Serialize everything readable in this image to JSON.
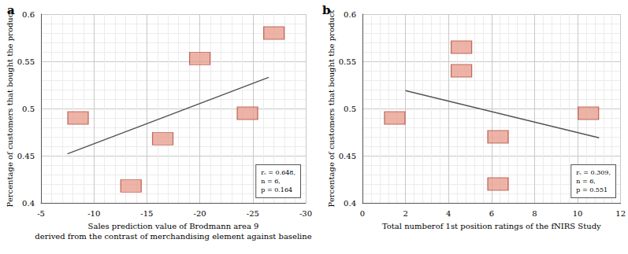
{
  "chart_data": [
    {
      "type": "scatter",
      "title": "a",
      "x": [
        -8.5,
        -13.5,
        -16.5,
        -20,
        -24.5,
        -27
      ],
      "values": [
        0.49,
        0.418,
        0.468,
        0.553,
        0.495,
        0.58
      ],
      "trend_x": [
        -7.5,
        -26.5
      ],
      "trend_values": [
        0.452,
        0.533
      ],
      "x_label": "Sales prediction value of Brodmann area 9\nderived from the contrast of merchandising element against baseline",
      "y_label": "Percentage of customers that bought the product",
      "xlim": [
        -5,
        -30
      ],
      "xticks": [
        -5,
        -10,
        -15,
        -20,
        -25,
        -30
      ],
      "ylim": [
        0.4,
        0.6
      ],
      "yticks": [
        0.4,
        0.45,
        0.5,
        0.55,
        0.6
      ],
      "annotation": [
        "rₛ = 0.648,",
        "n = 6,",
        "p = 0.164"
      ],
      "grid": true,
      "color": "#e8a090",
      "marker": "rect"
    },
    {
      "type": "scatter",
      "title": "b",
      "x": [
        1.5,
        4.6,
        4.6,
        6.3,
        6.3,
        10.5
      ],
      "values": [
        0.49,
        0.565,
        0.54,
        0.47,
        0.42,
        0.495
      ],
      "trend_x": [
        2,
        11
      ],
      "trend_values": [
        0.519,
        0.469
      ],
      "x_label": "Total numberof 1st position ratings of the fNIRS Study",
      "y_label": "Percentage of customers that bought the product",
      "xlim": [
        0,
        12
      ],
      "xticks": [
        0,
        2,
        4,
        6,
        8,
        10,
        12
      ],
      "ylim": [
        0.4,
        0.6
      ],
      "yticks": [
        0.4,
        0.45,
        0.5,
        0.55,
        0.6
      ],
      "annotation": [
        "rₛ = 0.309,",
        "n = 6,",
        "p = 0.551"
      ],
      "grid": true,
      "color": "#e8a090",
      "marker": "rect"
    }
  ]
}
